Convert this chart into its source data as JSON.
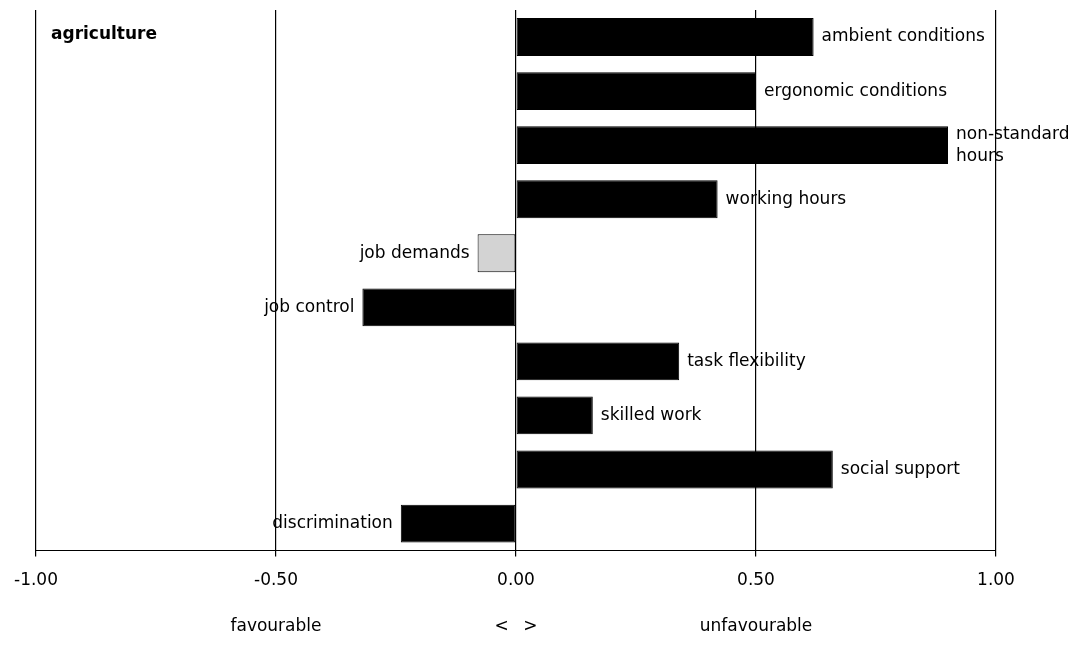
{
  "chart_data": {
    "type": "bar",
    "orientation": "horizontal",
    "title": "agriculture",
    "categories": [
      "ambient conditions",
      "ergonomic conditions",
      "non-standard hours",
      "working hours",
      "job demands",
      "job control",
      "task flexibility",
      "skilled work",
      "social support",
      "discrimination"
    ],
    "values": [
      0.62,
      0.5,
      0.9,
      0.42,
      -0.08,
      -0.32,
      0.34,
      0.16,
      0.66,
      -0.24
    ],
    "colors": [
      "#000000",
      "#000000",
      "#000000",
      "#000000",
      "#d3d3d3",
      "#000000",
      "#000000",
      "#000000",
      "#000000",
      "#000000"
    ],
    "xlim": [
      -1,
      1
    ],
    "xticks": [
      {
        "value": -1,
        "label": "-1.00"
      },
      {
        "value": -0.5,
        "label": "-0.50"
      },
      {
        "value": 0,
        "label": "0.00"
      },
      {
        "value": 0.5,
        "label": "0.50"
      },
      {
        "value": 1,
        "label": "1.00"
      }
    ],
    "annotations": [
      "favourable",
      "<",
      ">",
      "unfavourable"
    ],
    "grid": "x",
    "legend": false,
    "tick_labels": "x"
  }
}
